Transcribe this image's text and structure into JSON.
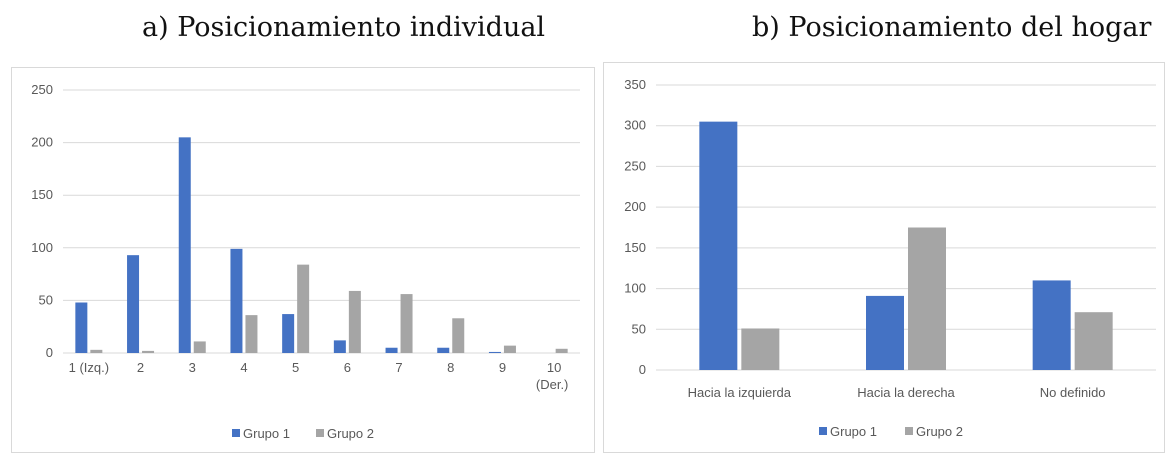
{
  "titles": {
    "a": "a)   Posicionamiento individual",
    "b": "b) Posicionamiento del hogar"
  },
  "colors": {
    "grupo1": "#4472C4",
    "grupo2": "#A5A5A5",
    "grid": "#d9d9d9",
    "axis": "#595959"
  },
  "chart_data": [
    {
      "type": "bar",
      "title": "a)   Posicionamiento individual",
      "categories": [
        "1 (Izq.)",
        "2",
        "3",
        "4",
        "5",
        "6",
        "7",
        "8",
        "9",
        "10\n(Der.)"
      ],
      "series": [
        {
          "name": "Grupo 1",
          "values": [
            48,
            93,
            205,
            99,
            37,
            12,
            5,
            5,
            1,
            0
          ]
        },
        {
          "name": "Grupo 2",
          "values": [
            3,
            2,
            11,
            36,
            84,
            59,
            56,
            33,
            7,
            4
          ]
        }
      ],
      "ylim": [
        0,
        250
      ],
      "yticks": [
        0,
        50,
        100,
        150,
        200,
        250
      ],
      "grid": true,
      "legend": "bottom",
      "xlabel": "",
      "ylabel": ""
    },
    {
      "type": "bar",
      "title": "b) Posicionamiento del hogar",
      "categories": [
        "Hacia la izquierda",
        "Hacia la derecha",
        "No definido"
      ],
      "series": [
        {
          "name": "Grupo 1",
          "values": [
            305,
            91,
            110
          ]
        },
        {
          "name": "Grupo 2",
          "values": [
            51,
            175,
            71
          ]
        }
      ],
      "ylim": [
        0,
        350
      ],
      "yticks": [
        0,
        50,
        100,
        150,
        200,
        250,
        300,
        350
      ],
      "grid": true,
      "legend": "bottom",
      "xlabel": "",
      "ylabel": ""
    }
  ]
}
